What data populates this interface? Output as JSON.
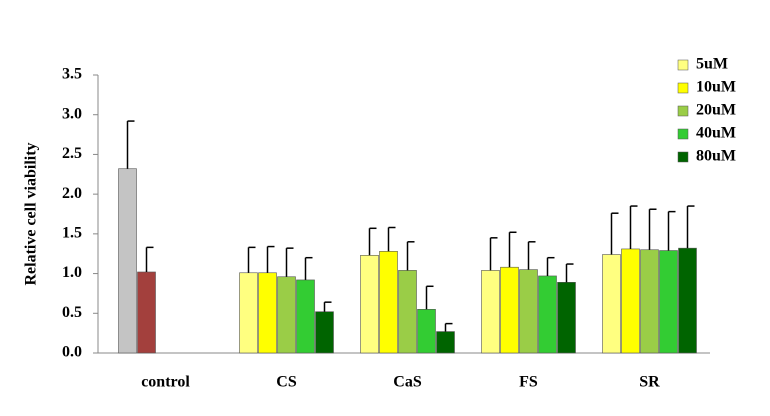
{
  "chart_data": {
    "type": "bar",
    "y_label": "Relative cell viability",
    "categories": [
      "control",
      "CS",
      "CaS",
      "FS",
      "SR"
    ],
    "ylim": [
      0,
      3.5
    ],
    "yticks": [
      {
        "value": 0,
        "label": "0.0"
      },
      0.5,
      {
        "value": 1,
        "label": "1.0"
      },
      1.5,
      {
        "value": 2,
        "label": "2.0"
      },
      2.5,
      {
        "value": 3,
        "label": "3.0"
      },
      3.5
    ],
    "series": [
      {
        "color": "#c4c4c4",
        "values": [
          2.32,
          null,
          null,
          null,
          null
        ],
        "errors": [
          0.6,
          null,
          null,
          null,
          null
        ]
      },
      {
        "color": "#a3403d",
        "values": [
          1.02,
          null,
          null,
          null,
          null
        ],
        "errors": [
          0.31,
          null,
          null,
          null,
          null
        ]
      },
      {
        "name": "5uM",
        "color": "#ffff80",
        "values": [
          null,
          1.01,
          1.23,
          1.04,
          1.24
        ],
        "errors": [
          null,
          0.32,
          0.34,
          0.41,
          0.52
        ]
      },
      {
        "name": "10uM",
        "color": "#ffff00",
        "values": [
          null,
          1.01,
          1.28,
          1.08,
          1.31
        ],
        "errors": [
          null,
          0.33,
          0.3,
          0.44,
          0.54
        ]
      },
      {
        "name": "20uM",
        "color": "#9acd47",
        "values": [
          null,
          0.96,
          1.04,
          1.05,
          1.3
        ],
        "errors": [
          null,
          0.36,
          0.36,
          0.35,
          0.51
        ]
      },
      {
        "name": "40uM",
        "color": "#33cc33",
        "values": [
          null,
          0.92,
          0.55,
          0.97,
          1.29
        ],
        "errors": [
          null,
          0.28,
          0.29,
          0.23,
          0.49
        ]
      },
      {
        "name": "80uM",
        "color": "#006400",
        "values": [
          null,
          0.52,
          0.27,
          0.89,
          1.32
        ],
        "errors": [
          null,
          0.12,
          0.1,
          0.23,
          0.53
        ]
      }
    ]
  }
}
